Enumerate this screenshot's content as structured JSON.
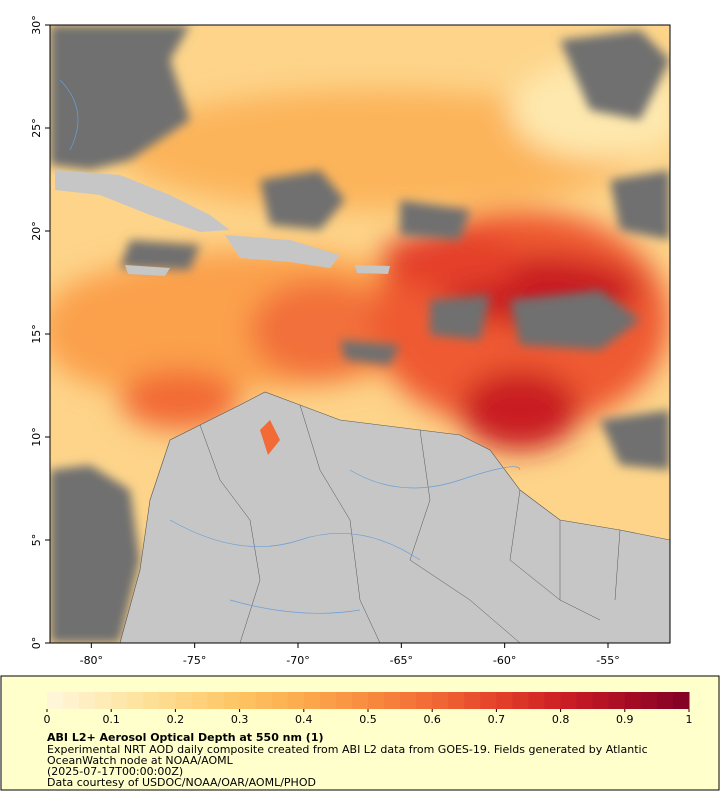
{
  "chart_data": {
    "type": "map",
    "title": "ABI L2+ Aerosol Optical Depth at 550 nm (1)",
    "caption": [
      "Experimental NRT AOD daily composite created from ABI L2 data from GOES-19. Fields generated by Atlantic",
      "OceanWatch node at NOAA/AOML",
      "(2025-07-17T00:00:00Z)",
      "Data courtesy of USDOC/NOAA/OAR/AOML/PHOD"
    ],
    "xlim": [
      -82,
      -52
    ],
    "ylim": [
      0,
      30
    ],
    "xticks": [
      {
        "value": -80,
        "label": "-80°"
      },
      {
        "value": -75,
        "label": "-75°"
      },
      {
        "value": -70,
        "label": "-70°"
      },
      {
        "value": -65,
        "label": "-65°"
      },
      {
        "value": -60,
        "label": "-60°"
      },
      {
        "value": -55,
        "label": "-55°"
      }
    ],
    "yticks": [
      {
        "value": 0,
        "label": "0°"
      },
      {
        "value": 5,
        "label": "5°"
      },
      {
        "value": 10,
        "label": "10°"
      },
      {
        "value": 15,
        "label": "15°"
      },
      {
        "value": 20,
        "label": "20°"
      },
      {
        "value": 25,
        "label": "25°"
      },
      {
        "value": 30,
        "label": "30°"
      }
    ],
    "colorbar": {
      "lim": [
        0,
        1
      ],
      "ticks": [
        0,
        0.1,
        0.2,
        0.3,
        0.4,
        0.5,
        0.6,
        0.7,
        0.8,
        0.9,
        1
      ],
      "colors": [
        "#fff7dc",
        "#fee9b0",
        "#fed987",
        "#fdc463",
        "#fcaa4d",
        "#f98b3f",
        "#f26a35",
        "#e4412a",
        "#cc1f24",
        "#a80d24",
        "#800026"
      ]
    }
  }
}
